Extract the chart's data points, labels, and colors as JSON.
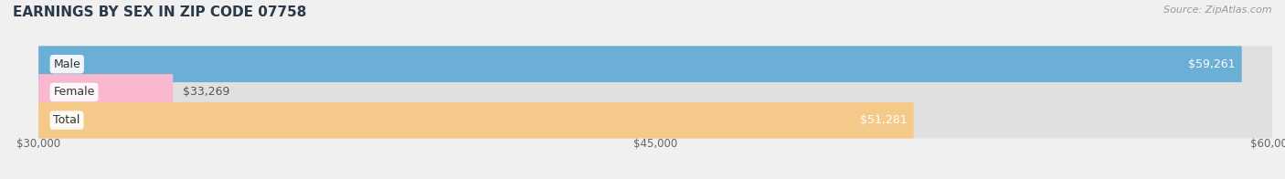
{
  "title": "EARNINGS BY SEX IN ZIP CODE 07758",
  "source": "Source: ZipAtlas.com",
  "categories": [
    "Male",
    "Female",
    "Total"
  ],
  "values": [
    59261,
    33269,
    51281
  ],
  "bar_colors": [
    "#6baed6",
    "#f9b8cf",
    "#f5c98a"
  ],
  "value_labels": [
    "$59,261",
    "$33,269",
    "$51,281"
  ],
  "xmin": 30000,
  "xmax": 60000,
  "xticks": [
    30000,
    45000,
    60000
  ],
  "xtick_labels": [
    "$30,000",
    "$45,000",
    "$60,000"
  ],
  "bar_height": 0.68,
  "background_color": "#f0f0f0",
  "bar_bg_color": "#e0e0e0",
  "title_color": "#2a3a4a",
  "source_color": "#999999",
  "label_font_size": 9,
  "title_font_size": 11,
  "value_inside_threshold": 50000,
  "bar_gap": 0.18
}
